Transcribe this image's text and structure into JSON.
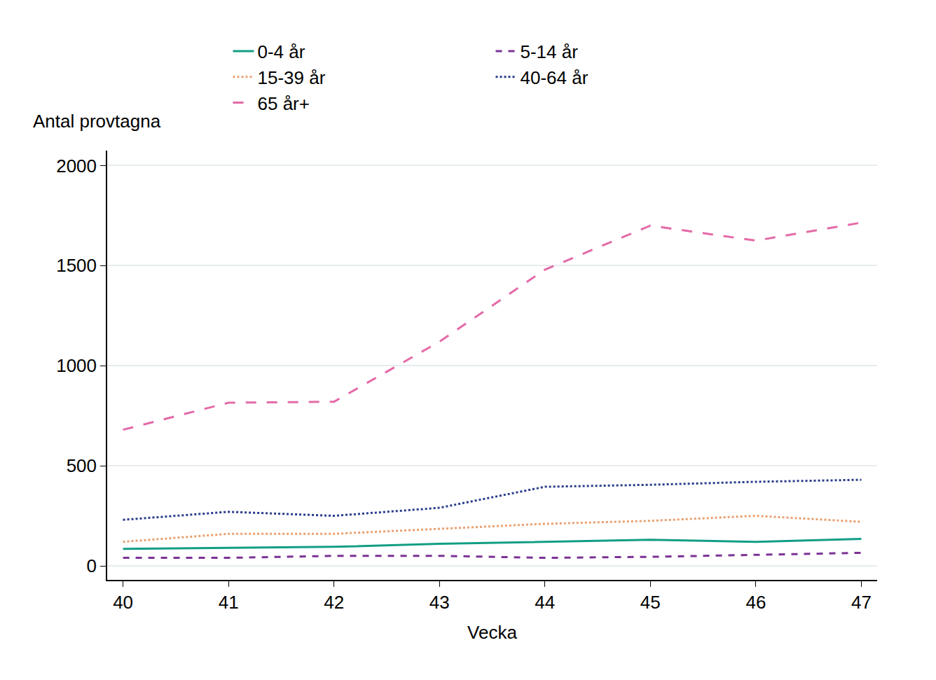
{
  "chart_data": {
    "type": "line",
    "x_label": "Vecka",
    "y_label": "Antal provtagna",
    "x": [
      40,
      41,
      42,
      43,
      44,
      45,
      46,
      47
    ],
    "xlim": [
      39.85,
      47.15
    ],
    "xticks": [
      40,
      41,
      42,
      43,
      44,
      45,
      46,
      47
    ],
    "ylim": [
      -70,
      2075
    ],
    "yticks": [
      0,
      500,
      1000,
      1500,
      2000
    ],
    "grid": true,
    "legend": "top",
    "series": [
      {
        "name": "0-4 år",
        "color": "#129e84",
        "line_style": "solid",
        "values": [
          85,
          90,
          95,
          110,
          120,
          130,
          120,
          135
        ]
      },
      {
        "name": "5-14 år",
        "color": "#7b3294",
        "line_style": "dash",
        "values": [
          40,
          40,
          50,
          50,
          40,
          45,
          55,
          65
        ]
      },
      {
        "name": "15-39 år",
        "color": "#e8a070",
        "line_style": "dot",
        "values": [
          120,
          160,
          160,
          185,
          210,
          225,
          250,
          220
        ]
      },
      {
        "name": "40-64 år",
        "color": "#283c8c",
        "line_style": "dot",
        "values": [
          230,
          270,
          250,
          290,
          395,
          405,
          420,
          430
        ]
      },
      {
        "name": "65 år+",
        "color": "#e46aa8",
        "line_style": "longdash",
        "values": [
          680,
          815,
          820,
          1120,
          1480,
          1700,
          1625,
          1715
        ]
      }
    ]
  }
}
